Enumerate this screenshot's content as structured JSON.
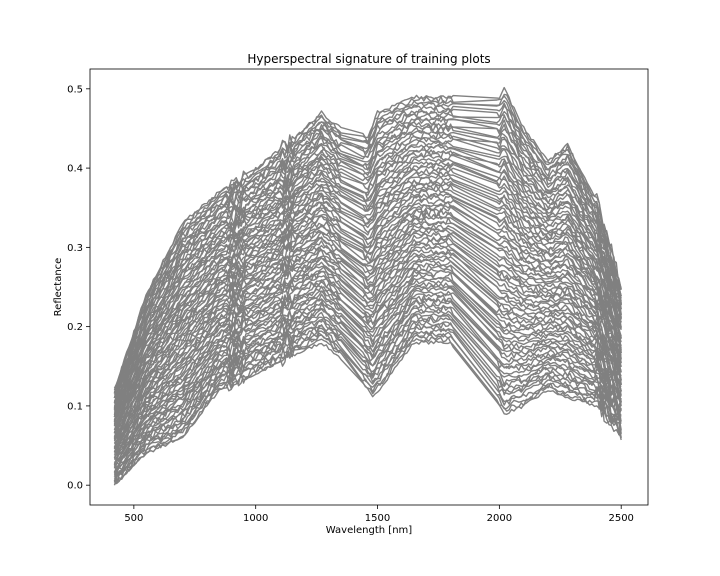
{
  "chart_data": {
    "type": "line",
    "title": "Hyperspectral signature of training plots",
    "xlabel": "Wavelength [nm]",
    "ylabel": "Reflectance",
    "xlim": [
      320,
      2610
    ],
    "ylim": [
      -0.025,
      0.525
    ],
    "xticks": [
      500,
      1000,
      1500,
      2000,
      2500
    ],
    "yticks": [
      0.0,
      0.1,
      0.2,
      0.3,
      0.4,
      0.5
    ],
    "ytick_labels": [
      "0.0",
      "0.1",
      "0.2",
      "0.3",
      "0.4",
      "0.5"
    ],
    "grid": false,
    "legend": "none",
    "line_color": "#808080",
    "series_count": 90,
    "max_series": {
      "x": [
        420,
        550,
        700,
        850,
        1000,
        1130,
        1270,
        1350,
        1460,
        1500,
        1650,
        1800,
        2000,
        2020,
        2100,
        2200,
        2280,
        2400,
        2500
      ],
      "values": [
        0.12,
        0.24,
        0.33,
        0.37,
        0.4,
        0.43,
        0.47,
        0.45,
        0.44,
        0.47,
        0.49,
        0.49,
        0.49,
        0.5,
        0.45,
        0.41,
        0.43,
        0.36,
        0.25
      ]
    },
    "min_series": {
      "x": [
        420,
        550,
        700,
        850,
        1000,
        1130,
        1270,
        1350,
        1460,
        1480,
        1650,
        1800,
        2000,
        2020,
        2100,
        2200,
        2280,
        2400,
        2500
      ],
      "values": [
        0.0,
        0.04,
        0.06,
        0.12,
        0.14,
        0.16,
        0.18,
        0.16,
        0.12,
        0.11,
        0.18,
        0.18,
        0.1,
        0.09,
        0.1,
        0.12,
        0.11,
        0.1,
        0.06
      ]
    }
  }
}
